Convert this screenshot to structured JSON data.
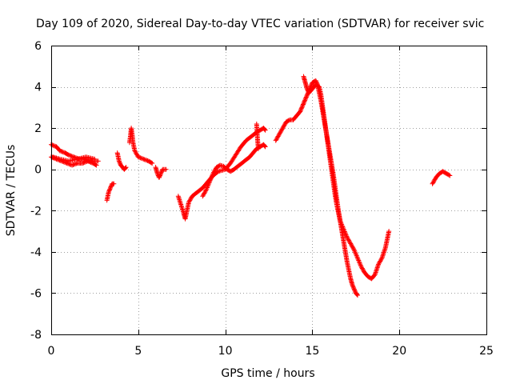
{
  "chart_data": {
    "type": "scatter",
    "title": "Day 109 of 2020, Sidereal Day-to-day VTEC variation (SDTVAR) for receiver svic",
    "xlabel": "GPS time / hours",
    "ylabel": "SDTVAR / TECUs",
    "xlim": [
      0,
      25
    ],
    "ylim": [
      -8,
      6
    ],
    "xticks": [
      0,
      5,
      10,
      15,
      20,
      25
    ],
    "yticks": [
      -8,
      -6,
      -4,
      -2,
      0,
      2,
      4,
      6
    ],
    "xtick_labels": [
      "0",
      "5",
      "10",
      "15",
      "20",
      "25"
    ],
    "ytick_labels": [
      "-8",
      "-6",
      "-4",
      "-2",
      "0",
      "2",
      "4",
      "6"
    ],
    "grid": true,
    "marker": "+",
    "color": "#ff0000",
    "series": [
      {
        "name": "SDTVAR",
        "traces": [
          [
            [
              0.0,
              1.2
            ],
            [
              0.3,
              1.1
            ],
            [
              0.5,
              0.9
            ],
            [
              0.8,
              0.8
            ],
            [
              1.0,
              0.7
            ],
            [
              1.3,
              0.6
            ],
            [
              1.6,
              0.5
            ],
            [
              1.9,
              0.5
            ],
            [
              2.2,
              0.4
            ],
            [
              2.5,
              0.4
            ],
            [
              2.7,
              0.4
            ]
          ],
          [
            [
              0.0,
              0.6
            ],
            [
              0.3,
              0.5
            ],
            [
              0.6,
              0.4
            ],
            [
              0.9,
              0.3
            ],
            [
              1.2,
              0.2
            ],
            [
              1.5,
              0.3
            ],
            [
              1.8,
              0.3
            ],
            [
              2.1,
              0.4
            ],
            [
              2.4,
              0.3
            ],
            [
              2.6,
              0.2
            ]
          ],
          [
            [
              0.1,
              0.6
            ],
            [
              0.5,
              0.5
            ],
            [
              1.0,
              0.4
            ],
            [
              1.5,
              0.5
            ],
            [
              2.0,
              0.6
            ],
            [
              2.5,
              0.5
            ]
          ],
          [
            [
              3.2,
              -1.5
            ],
            [
              3.3,
              -1.1
            ],
            [
              3.4,
              -0.9
            ],
            [
              3.5,
              -0.7
            ],
            [
              3.6,
              -0.7
            ]
          ],
          [
            [
              3.8,
              0.8
            ],
            [
              3.9,
              0.4
            ],
            [
              4.0,
              0.2
            ],
            [
              4.1,
              0.1
            ],
            [
              4.2,
              0.0
            ],
            [
              4.3,
              0.1
            ]
          ],
          [
            [
              4.5,
              1.3
            ],
            [
              4.55,
              1.6
            ],
            [
              4.6,
              2.0
            ],
            [
              4.65,
              1.7
            ],
            [
              4.7,
              1.3
            ],
            [
              4.8,
              0.9
            ],
            [
              5.0,
              0.6
            ],
            [
              5.3,
              0.5
            ],
            [
              5.6,
              0.4
            ],
            [
              5.8,
              0.3
            ]
          ],
          [
            [
              6.0,
              0.1
            ],
            [
              6.1,
              -0.2
            ],
            [
              6.2,
              -0.4
            ],
            [
              6.3,
              -0.2
            ],
            [
              6.4,
              0.0
            ],
            [
              6.6,
              0.0
            ]
          ],
          [
            [
              7.3,
              -1.3
            ],
            [
              7.45,
              -1.7
            ],
            [
              7.6,
              -2.1
            ],
            [
              7.7,
              -2.4
            ],
            [
              7.8,
              -2.0
            ],
            [
              7.9,
              -1.6
            ],
            [
              8.1,
              -1.3
            ],
            [
              8.4,
              -1.1
            ],
            [
              8.7,
              -0.9
            ],
            [
              9.0,
              -0.6
            ],
            [
              9.3,
              -0.3
            ],
            [
              9.6,
              -0.1
            ],
            [
              10.0,
              0.0
            ],
            [
              10.3,
              0.3
            ],
            [
              10.6,
              0.7
            ],
            [
              10.9,
              1.1
            ],
            [
              11.2,
              1.4
            ],
            [
              11.5,
              1.6
            ],
            [
              11.8,
              1.8
            ],
            [
              12.0,
              1.9
            ],
            [
              12.2,
              2.0
            ],
            [
              12.3,
              1.9
            ]
          ],
          [
            [
              8.7,
              -1.3
            ],
            [
              8.9,
              -1.0
            ],
            [
              9.1,
              -0.6
            ],
            [
              9.3,
              -0.2
            ],
            [
              9.5,
              0.1
            ],
            [
              9.7,
              0.2
            ],
            [
              9.9,
              0.15
            ],
            [
              10.1,
              0.0
            ],
            [
              10.3,
              -0.1
            ],
            [
              10.5,
              0.0
            ],
            [
              10.8,
              0.2
            ],
            [
              11.1,
              0.4
            ],
            [
              11.4,
              0.6
            ],
            [
              11.6,
              0.8
            ],
            [
              11.8,
              1.0
            ],
            [
              12.0,
              1.1
            ],
            [
              12.2,
              1.2
            ],
            [
              12.3,
              1.1
            ]
          ],
          [
            [
              11.8,
              2.2
            ],
            [
              11.85,
              1.5
            ],
            [
              11.9,
              1.0
            ]
          ],
          [
            [
              12.9,
              1.4
            ],
            [
              13.1,
              1.7
            ],
            [
              13.3,
              2.0
            ],
            [
              13.5,
              2.3
            ],
            [
              13.7,
              2.4
            ],
            [
              13.9,
              2.4
            ],
            [
              14.1,
              2.6
            ],
            [
              14.3,
              2.8
            ],
            [
              14.4,
              3.0
            ],
            [
              14.5,
              3.2
            ],
            [
              14.6,
              3.4
            ],
            [
              14.7,
              3.6
            ],
            [
              14.8,
              3.8
            ],
            [
              14.9,
              4.0
            ],
            [
              15.0,
              4.2
            ],
            [
              15.2,
              4.3
            ],
            [
              15.3,
              4.1
            ],
            [
              15.4,
              3.7
            ],
            [
              15.5,
              3.3
            ],
            [
              15.6,
              2.8
            ],
            [
              15.7,
              2.3
            ],
            [
              15.8,
              1.8
            ],
            [
              15.9,
              1.3
            ],
            [
              16.0,
              0.8
            ],
            [
              16.1,
              0.3
            ],
            [
              16.2,
              -0.2
            ],
            [
              16.3,
              -0.8
            ],
            [
              16.4,
              -1.4
            ],
            [
              16.5,
              -2.0
            ],
            [
              16.6,
              -2.5
            ],
            [
              16.7,
              -3.0
            ],
            [
              16.8,
              -3.5
            ],
            [
              16.9,
              -4.0
            ],
            [
              17.0,
              -4.5
            ],
            [
              17.1,
              -4.9
            ],
            [
              17.2,
              -5.3
            ],
            [
              17.3,
              -5.6
            ],
            [
              17.4,
              -5.8
            ],
            [
              17.5,
              -6.0
            ],
            [
              17.6,
              -6.1
            ]
          ],
          [
            [
              14.5,
              4.5
            ],
            [
              14.6,
              4.2
            ],
            [
              14.7,
              3.9
            ],
            [
              14.8,
              3.7
            ],
            [
              15.0,
              3.9
            ],
            [
              15.2,
              4.1
            ],
            [
              15.4,
              4.0
            ],
            [
              15.5,
              3.6
            ],
            [
              15.6,
              3.0
            ],
            [
              15.7,
              2.4
            ],
            [
              15.8,
              1.8
            ],
            [
              15.9,
              1.2
            ],
            [
              16.0,
              0.6
            ],
            [
              16.1,
              0.0
            ],
            [
              16.2,
              -0.6
            ],
            [
              16.3,
              -1.2
            ],
            [
              16.4,
              -1.7
            ],
            [
              16.5,
              -2.1
            ],
            [
              16.6,
              -2.5
            ],
            [
              16.8,
              -2.9
            ],
            [
              17.0,
              -3.3
            ],
            [
              17.2,
              -3.6
            ],
            [
              17.4,
              -3.9
            ],
            [
              17.6,
              -4.3
            ],
            [
              17.8,
              -4.7
            ],
            [
              18.0,
              -5.0
            ],
            [
              18.2,
              -5.2
            ],
            [
              18.4,
              -5.3
            ],
            [
              18.6,
              -5.1
            ],
            [
              18.8,
              -4.6
            ],
            [
              19.0,
              -4.3
            ],
            [
              19.2,
              -3.8
            ],
            [
              19.3,
              -3.4
            ],
            [
              19.4,
              -3.0
            ]
          ],
          [
            [
              21.9,
              -0.7
            ],
            [
              22.1,
              -0.4
            ],
            [
              22.3,
              -0.2
            ],
            [
              22.5,
              -0.1
            ],
            [
              22.7,
              -0.2
            ],
            [
              22.9,
              -0.3
            ]
          ]
        ]
      }
    ]
  }
}
